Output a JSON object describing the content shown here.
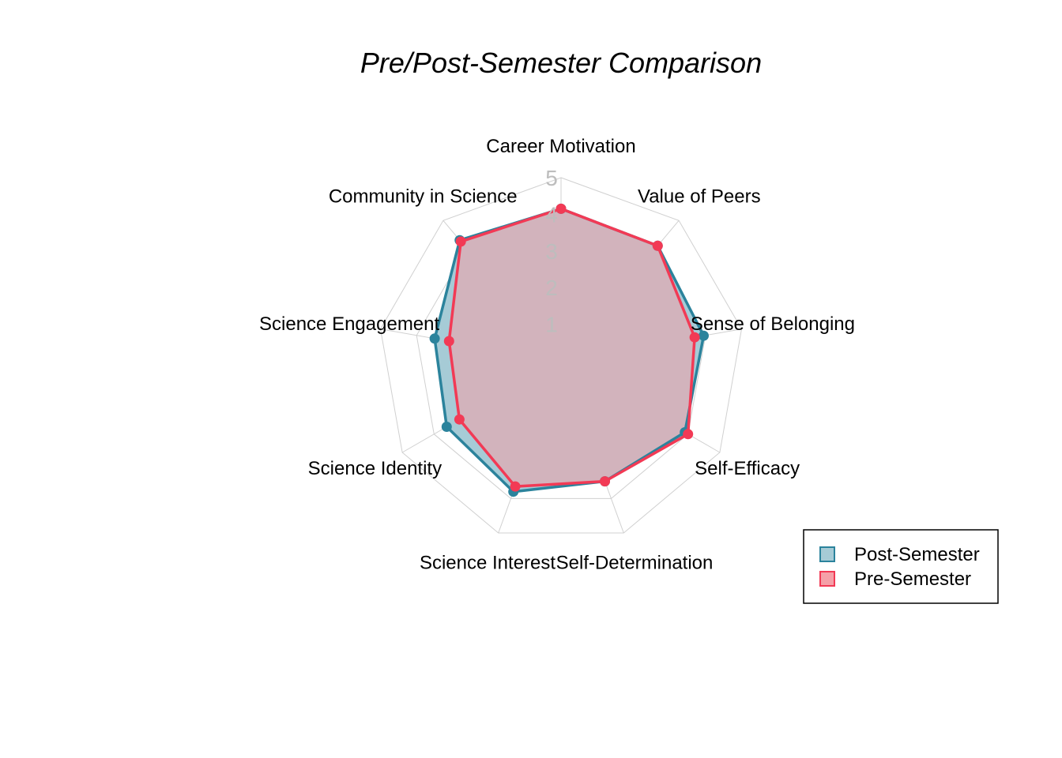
{
  "chart_data": {
    "type": "radar",
    "title": "Pre/Post-Semester Comparison",
    "axes": [
      "Career Motivation",
      "Value of Peers",
      "Sense of Belonging",
      "Self-Efficacy",
      "Self-Determination",
      "Science Interest",
      "Science Identity",
      "Science Engagement",
      "Community in Science"
    ],
    "ticks": [
      1,
      2,
      3,
      4,
      5
    ],
    "rmin": 0,
    "rmax": 5,
    "grid": true,
    "legend_position": "bottom-right",
    "series": [
      {
        "name": "Post-Semester",
        "line_color": "#2b839c",
        "fill_color": "#a6cbd6",
        "values": [
          4.15,
          4.1,
          3.95,
          3.9,
          3.5,
          3.8,
          3.6,
          3.5,
          4.3
        ]
      },
      {
        "name": "Pre-Semester",
        "line_color": "#f23a55",
        "fill_color": "#f5a0a8",
        "values": [
          4.15,
          4.1,
          3.7,
          4.0,
          3.5,
          3.65,
          3.2,
          3.1,
          4.25
        ]
      }
    ]
  }
}
